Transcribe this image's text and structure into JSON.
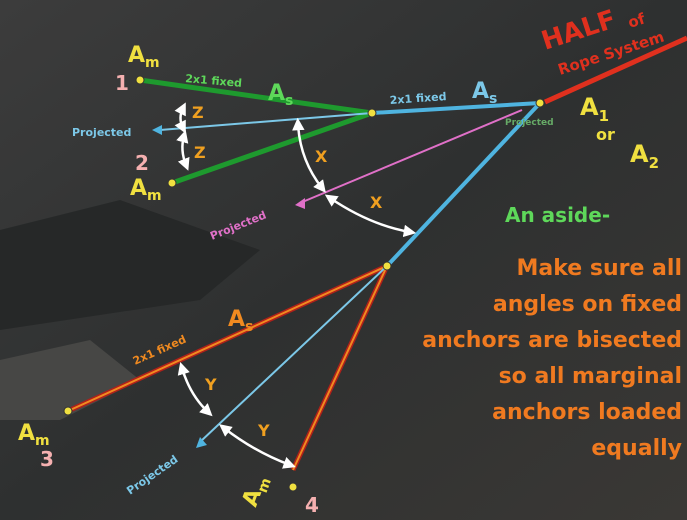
{
  "title": {
    "big": "HALF",
    "small": "of",
    "line2": "Rope System"
  },
  "master": {
    "a1": "A",
    "sub1": "1",
    "or": "or",
    "a2": "A",
    "sub2": "2"
  },
  "anchors": [
    {
      "label": "A",
      "sub": "m",
      "number": "1"
    },
    {
      "label": "A",
      "sub": "m",
      "number": "2"
    },
    {
      "label": "A",
      "sub": "m",
      "number": "3"
    },
    {
      "label": "A",
      "sub": "m",
      "number": "4"
    }
  ],
  "legs": [
    {
      "text": "2x1 fixed",
      "label": "A",
      "sub": "s"
    },
    {
      "text": "2x1 fixed",
      "label": "A",
      "sub": "s"
    },
    {
      "text": "2x1 fixed",
      "label": "A",
      "sub": "s"
    }
  ],
  "projected": [
    "Projected",
    "Projected",
    "Projected",
    "Projected"
  ],
  "angles": [
    "Z",
    "Z",
    "X",
    "X",
    "Y",
    "Y"
  ],
  "aside": {
    "heading": "An aside-",
    "lines": [
      "Make sure all",
      "angles on fixed",
      "anchors are bisected",
      "so all marginal",
      "anchors loaded",
      "equally"
    ]
  }
}
